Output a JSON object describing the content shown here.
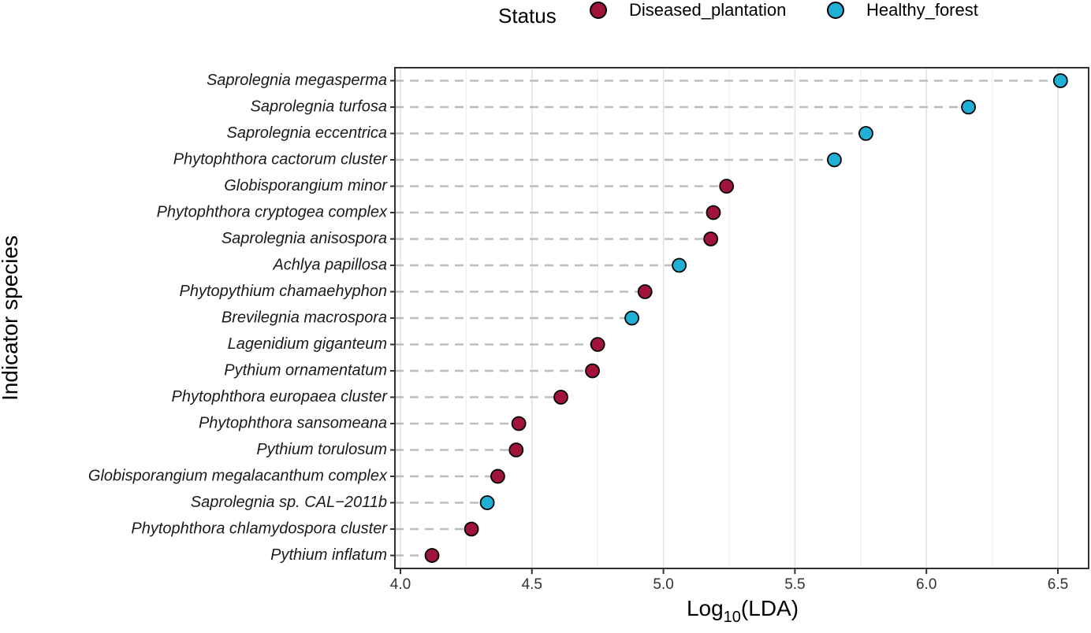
{
  "chart_data": {
    "type": "scatter",
    "xlabel_main": "Log",
    "xlabel_sub": "10",
    "xlabel_rest": "(LDA)",
    "ylabel": "Indicator species",
    "xlim": [
      4.0,
      6.6
    ],
    "x_ticks": [
      "4.0",
      "4.5",
      "5.0",
      "5.5",
      "6.0",
      "6.5"
    ],
    "grid": "vertical",
    "legend": {
      "title": "Status",
      "position": "top",
      "entries": [
        {
          "label": "Diseased_plantation",
          "color": "#a0133b"
        },
        {
          "label": "Healthy_forest",
          "color": "#1fb0d6"
        }
      ]
    },
    "species": [
      {
        "name": "Saprolegnia megasperma",
        "value": 6.51,
        "status": "Healthy_forest"
      },
      {
        "name": "Saprolegnia turfosa",
        "value": 6.16,
        "status": "Healthy_forest"
      },
      {
        "name": "Saprolegnia eccentrica",
        "value": 5.77,
        "status": "Healthy_forest"
      },
      {
        "name": "Phytophthora cactorum cluster",
        "value": 5.65,
        "status": "Healthy_forest"
      },
      {
        "name": "Globisporangium minor",
        "value": 5.24,
        "status": "Diseased_plantation"
      },
      {
        "name": "Phytophthora cryptogea complex",
        "value": 5.19,
        "status": "Diseased_plantation"
      },
      {
        "name": "Saprolegnia anisospora",
        "value": 5.18,
        "status": "Diseased_plantation"
      },
      {
        "name": "Achlya papillosa",
        "value": 5.06,
        "status": "Healthy_forest"
      },
      {
        "name": "Phytopythium chamaehyphon",
        "value": 4.93,
        "status": "Diseased_plantation"
      },
      {
        "name": "Brevilegnia macrospora",
        "value": 4.88,
        "status": "Healthy_forest"
      },
      {
        "name": "Lagenidium giganteum",
        "value": 4.75,
        "status": "Diseased_plantation"
      },
      {
        "name": "Pythium ornamentatum",
        "value": 4.73,
        "status": "Diseased_plantation"
      },
      {
        "name": "Phytophthora europaea cluster",
        "value": 4.61,
        "status": "Diseased_plantation"
      },
      {
        "name": "Phytophthora sansomeana",
        "value": 4.45,
        "status": "Diseased_plantation"
      },
      {
        "name": "Pythium torulosum",
        "value": 4.44,
        "status": "Diseased_plantation"
      },
      {
        "name": "Globisporangium megalacanthum complex",
        "value": 4.37,
        "status": "Diseased_plantation"
      },
      {
        "name": "Saprolegnia sp. CAL−2011b",
        "value": 4.33,
        "status": "Healthy_forest"
      },
      {
        "name": "Phytophthora chlamydospora cluster",
        "value": 4.27,
        "status": "Diseased_plantation"
      },
      {
        "name": "Pythium inflatum",
        "value": 4.12,
        "status": "Diseased_plantation"
      }
    ]
  }
}
